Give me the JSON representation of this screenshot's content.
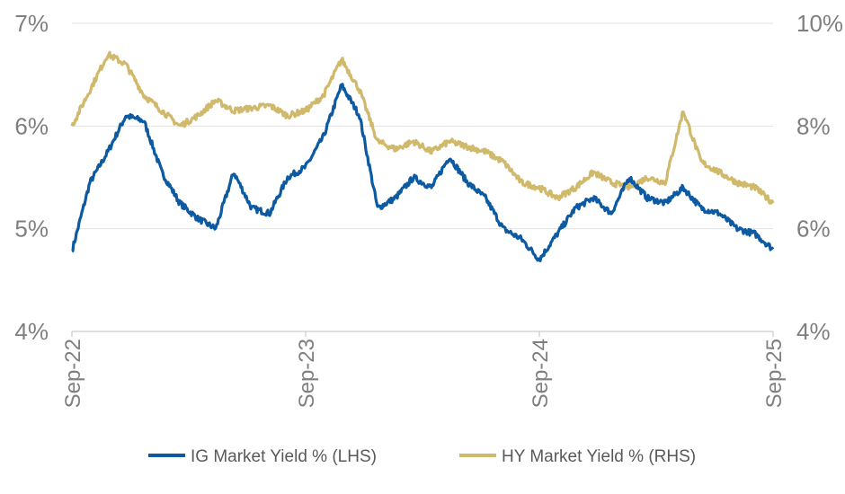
{
  "chart_data": {
    "type": "line",
    "title": "",
    "x_ticks": [
      "Sep-22",
      "Sep-23",
      "Sep-24",
      "Sep-25"
    ],
    "y_left": {
      "ylim": [
        4,
        7
      ],
      "ticks": [
        "4%",
        "5%",
        "6%",
        "7%"
      ]
    },
    "y_right": {
      "ylim": [
        4,
        10
      ],
      "ticks": [
        "4%",
        "6%",
        "8%",
        "10%"
      ]
    },
    "grid": true,
    "legend_position": "bottom",
    "series": [
      {
        "name": "IG Market Yield % (LHS)",
        "axis": "left",
        "color": "#0b5aa2",
        "points": [
          [
            "Sep-22",
            4.78
          ],
          [
            "Oct-22",
            5.45
          ],
          [
            "Oct-22b",
            5.75
          ],
          [
            "Nov-22",
            6.1
          ],
          [
            "Nov-22b",
            6.05
          ],
          [
            "Dec-22",
            5.55
          ],
          [
            "Jan-23",
            5.25
          ],
          [
            "Feb-23",
            5.1
          ],
          [
            "Mar-23",
            5.0
          ],
          [
            "Apr-23",
            5.55
          ],
          [
            "May-23",
            5.2
          ],
          [
            "Jun-23",
            5.15
          ],
          [
            "Jul-23",
            5.5
          ],
          [
            "Aug-23",
            5.6
          ],
          [
            "Sep-23",
            5.9
          ],
          [
            "Oct-23",
            6.4
          ],
          [
            "Oct-23b",
            6.1
          ],
          [
            "Nov-23",
            5.2
          ],
          [
            "Dec-23",
            5.3
          ],
          [
            "Jan-24",
            5.5
          ],
          [
            "Feb-24",
            5.4
          ],
          [
            "Mar-24",
            5.7
          ],
          [
            "Apr-24",
            5.45
          ],
          [
            "May-24",
            5.3
          ],
          [
            "Jun-24",
            5.0
          ],
          [
            "Jul-24",
            4.9
          ],
          [
            "Aug-24",
            4.7
          ],
          [
            "Sep-24",
            4.95
          ],
          [
            "Oct-24",
            5.2
          ],
          [
            "Nov-24",
            5.3
          ],
          [
            "Dec-24",
            5.15
          ],
          [
            "Jan-25",
            5.5
          ],
          [
            "Feb-25",
            5.3
          ],
          [
            "Mar-25",
            5.25
          ],
          [
            "Apr-25",
            5.4
          ],
          [
            "May-25",
            5.2
          ],
          [
            "Jun-25",
            5.15
          ],
          [
            "Jul-25",
            5.0
          ],
          [
            "Aug-25",
            4.95
          ],
          [
            "Sep-25",
            4.8
          ]
        ]
      },
      {
        "name": "HY Market Yield % (RHS)",
        "axis": "right",
        "color": "#d1b96c",
        "points": [
          [
            "Sep-22",
            8.0
          ],
          [
            "Oct-22",
            8.7
          ],
          [
            "Oct-22b",
            9.4
          ],
          [
            "Nov-22",
            9.2
          ],
          [
            "Nov-22b",
            8.6
          ],
          [
            "Dec-22",
            8.3
          ],
          [
            "Jan-23",
            8.0
          ],
          [
            "Feb-23",
            8.2
          ],
          [
            "Mar-23",
            8.5
          ],
          [
            "Apr-23",
            8.3
          ],
          [
            "May-23",
            8.35
          ],
          [
            "Jun-23",
            8.4
          ],
          [
            "Jul-23",
            8.2
          ],
          [
            "Aug-23",
            8.3
          ],
          [
            "Sep-23",
            8.6
          ],
          [
            "Oct-23",
            9.3
          ],
          [
            "Oct-23b",
            8.7
          ],
          [
            "Nov-23",
            7.7
          ],
          [
            "Dec-23",
            7.55
          ],
          [
            "Jan-24",
            7.7
          ],
          [
            "Feb-24",
            7.5
          ],
          [
            "Mar-24",
            7.7
          ],
          [
            "Apr-24",
            7.6
          ],
          [
            "May-24",
            7.5
          ],
          [
            "Jun-24",
            7.3
          ],
          [
            "Jul-24",
            6.9
          ],
          [
            "Aug-24",
            6.8
          ],
          [
            "Sep-24",
            6.6
          ],
          [
            "Oct-24",
            6.8
          ],
          [
            "Nov-24",
            7.1
          ],
          [
            "Dec-24",
            6.9
          ],
          [
            "Jan-25",
            6.8
          ],
          [
            "Feb-25",
            7.0
          ],
          [
            "Mar-25",
            6.9
          ],
          [
            "Apr-25",
            8.3
          ],
          [
            "May-25",
            7.3
          ],
          [
            "Jun-25",
            7.1
          ],
          [
            "Jul-25",
            6.9
          ],
          [
            "Aug-25",
            6.8
          ],
          [
            "Sep-25",
            6.5
          ]
        ]
      }
    ]
  }
}
